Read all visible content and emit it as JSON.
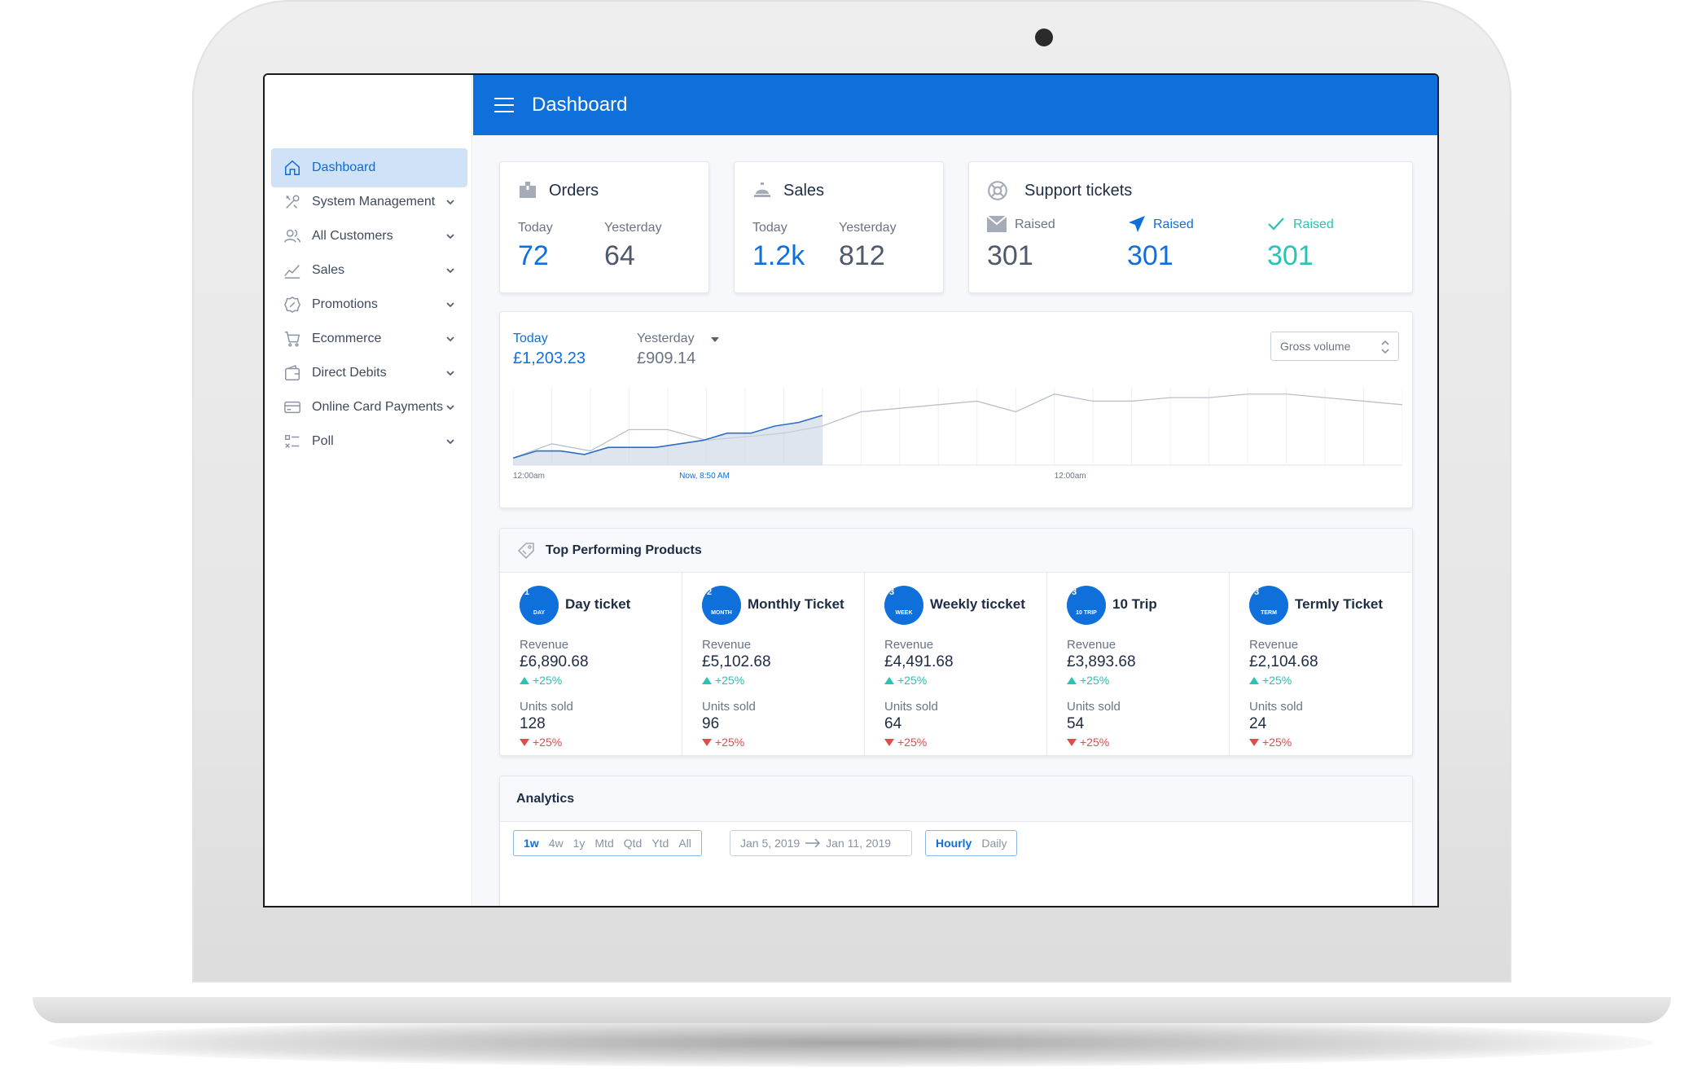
{
  "app": {
    "title": "Dashboard"
  },
  "colors": {
    "primary": "#0f6fdb",
    "active_nav_bg": "#cfe2f7",
    "positive": "#27c4b4",
    "negative": "#e5484d"
  },
  "sidebar": {
    "items": [
      {
        "label": "Dashboard",
        "icon": "home-icon",
        "active": true
      },
      {
        "label": "System Management",
        "icon": "tools-icon"
      },
      {
        "label": "All Customers",
        "icon": "users-icon"
      },
      {
        "label": "Sales",
        "icon": "trend-icon"
      },
      {
        "label": "Promotions",
        "icon": "badge-icon"
      },
      {
        "label": "Ecommerce",
        "icon": "cart-icon"
      },
      {
        "label": "Direct Debits",
        "icon": "wallet-icon"
      },
      {
        "label": "Online Card Payments",
        "icon": "card-icon"
      },
      {
        "label": "Poll",
        "icon": "poll-icon"
      }
    ]
  },
  "orders": {
    "title": "Orders",
    "today_label": "Today",
    "today_value": "72",
    "yesterday_label": "Yesterday",
    "yesterday_value": "64"
  },
  "sales": {
    "title": "Sales",
    "today_label": "Today",
    "today_value": "1.2k",
    "yesterday_label": "Yesterday",
    "yesterday_value": "812"
  },
  "support": {
    "title": "Support tickets",
    "items": [
      {
        "label": "Raised",
        "value": "301",
        "icon": "mail-icon"
      },
      {
        "label": "Raised",
        "value": "301",
        "icon": "send-icon"
      },
      {
        "label": "Raised",
        "value": "301",
        "icon": "check-icon"
      }
    ]
  },
  "volume": {
    "today_label": "Today",
    "today_value": "£1,203.23",
    "yesterday_label": "Yesterday",
    "yesterday_value": "£909.14",
    "select_value": "Gross volume",
    "x_labels": [
      "12:00am",
      "Now, 8:50 AM",
      "12:00am"
    ]
  },
  "chart_data": {
    "type": "line",
    "series": [
      {
        "values": [
          2,
          4,
          4,
          3,
          5,
          5,
          5,
          6,
          7,
          9,
          9,
          11,
          12,
          14
        ]
      },
      {
        "values": [
          2,
          6,
          4,
          10,
          10,
          7,
          8,
          9,
          11,
          15,
          16,
          17,
          18,
          15,
          20,
          18,
          18,
          19,
          19,
          20,
          20,
          19,
          18,
          17
        ]
      }
    ]
  },
  "products": {
    "title": "Top Performing Products",
    "revenue_label": "Revenue",
    "units_label": "Units sold",
    "items": [
      {
        "rank": "1",
        "tag": "DAY",
        "name": "Day ticket",
        "revenue": "£6,890.68",
        "revenue_delta": "+25%",
        "units": "128",
        "units_delta": "+25%"
      },
      {
        "rank": "2",
        "tag": "MONTH",
        "name": "Monthly Ticket",
        "revenue": "£5,102.68",
        "revenue_delta": "+25%",
        "units": "96",
        "units_delta": "+25%"
      },
      {
        "rank": "3",
        "tag": "WEEK",
        "name": "Weekly ticcket",
        "revenue": "£4,491.68",
        "revenue_delta": "+25%",
        "units": "64",
        "units_delta": "+25%"
      },
      {
        "rank": "3",
        "tag": "10 TRIP",
        "name": "10 Trip",
        "revenue": "£3,893.68",
        "revenue_delta": "+25%",
        "units": "54",
        "units_delta": "+25%"
      },
      {
        "rank": "3",
        "tag": "TERM",
        "name": "Termly Ticket",
        "revenue": "£2,104.68",
        "revenue_delta": "+25%",
        "units": "24",
        "units_delta": "+25%"
      }
    ]
  },
  "analytics": {
    "title": "Analytics",
    "ranges": [
      "1w",
      "4w",
      "1y",
      "Mtd",
      "Qtd",
      "Ytd",
      "All"
    ],
    "date_from": "Jan 5, 2019",
    "date_to": "Jan 11, 2019",
    "granularity": [
      "Hourly",
      "Daily"
    ]
  }
}
